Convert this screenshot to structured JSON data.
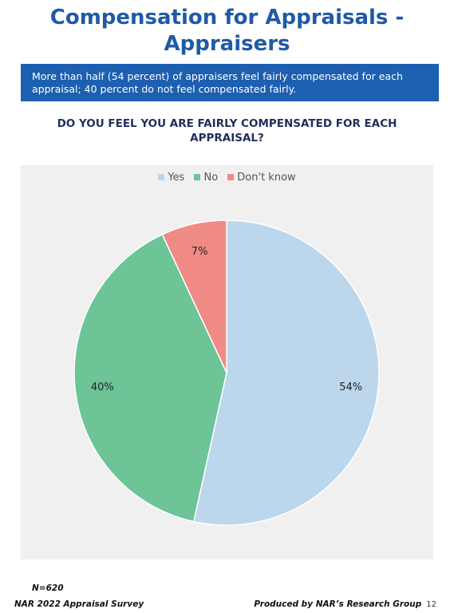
{
  "page": {
    "title_line1": "Compensation for Appraisals -",
    "title_line2": "Appraisers",
    "summary_line1": "More than half (54 percent) of appraisers feel fairly compensated for each",
    "summary_line2": "appraisal; 40 percent do not feel compensated fairly.",
    "question_line1": "DO YOU FEEL YOU ARE FAIRLY COMPENSATED FOR EACH",
    "question_line2": "APPRAISAL?"
  },
  "chart_data": {
    "type": "pie",
    "slices": [
      {
        "label": "Yes",
        "value": 54,
        "display": "54%",
        "color": "#bcd7ec"
      },
      {
        "label": "No",
        "value": 40,
        "display": "40%",
        "color": "#6cc497"
      },
      {
        "label": "Don't know",
        "value": 7,
        "display": "7%",
        "color": "#f08a85"
      }
    ],
    "legend_position": "top",
    "start": "12 o'clock, clockwise"
  },
  "footer": {
    "sample": "N=620",
    "survey": "NAR 2022 Appraisal Survey",
    "producer": "Produced by NAR’s Research Group",
    "page_number": "12"
  }
}
